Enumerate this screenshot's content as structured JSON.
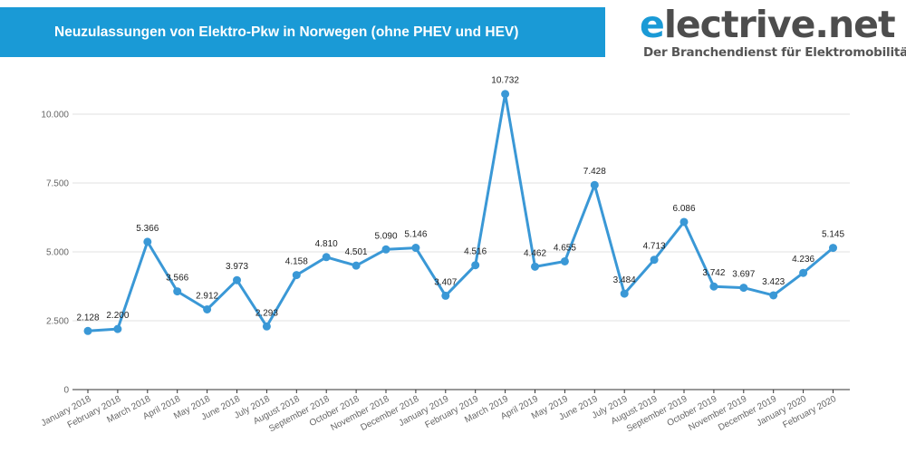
{
  "header": {
    "title": "Neuzulassungen von Elektro-Pkw in Norwegen (ohne PHEV und HEV)"
  },
  "logo": {
    "first_letter": "e",
    "rest": "lectrive.net",
    "tagline": "Der Branchendienst für Elektromobilität"
  },
  "colors": {
    "accent": "#1a9ad6",
    "line": "#3a98d6",
    "grid": "#e0e0e0"
  },
  "chart_data": {
    "type": "line",
    "categories": [
      "January 2018",
      "February 2018",
      "March 2018",
      "April 2018",
      "May 2018",
      "June 2018",
      "July 2018",
      "August 2018",
      "September 2018",
      "October 2018",
      "November 2018",
      "December 2018",
      "January 2019",
      "February 2019",
      "March 2019",
      "April 2019",
      "May 2019",
      "June 2019",
      "July 2019",
      "August 2019",
      "September 2019",
      "October 2019",
      "November 2019",
      "December 2019",
      "January 2020",
      "February 2020"
    ],
    "values": [
      2128,
      2200,
      5366,
      3566,
      2912,
      3973,
      2293,
      4158,
      4810,
      4501,
      5090,
      5146,
      3407,
      4516,
      10732,
      4462,
      4655,
      7428,
      3484,
      4713,
      6086,
      3742,
      3697,
      3423,
      4236,
      5145
    ],
    "value_labels": [
      "2.128",
      "2.200",
      "5.366",
      "3.566",
      "2.912",
      "3.973",
      "2.293",
      "4.158",
      "4.810",
      "4.501",
      "5.090",
      "5.146",
      "3.407",
      "4.516",
      "10.732",
      "4.462",
      "4.655",
      "7.428",
      "3.484",
      "4.713",
      "6.086",
      "3.742",
      "3.697",
      "3.423",
      "4.236",
      "5.145"
    ],
    "yticks": [
      0,
      2500,
      5000,
      7500,
      10000
    ],
    "ytick_labels": [
      "0",
      "2.500",
      "5.000",
      "7.500",
      "10.000"
    ],
    "ylim": [
      0,
      11000
    ],
    "grid": true,
    "legend": "none"
  }
}
